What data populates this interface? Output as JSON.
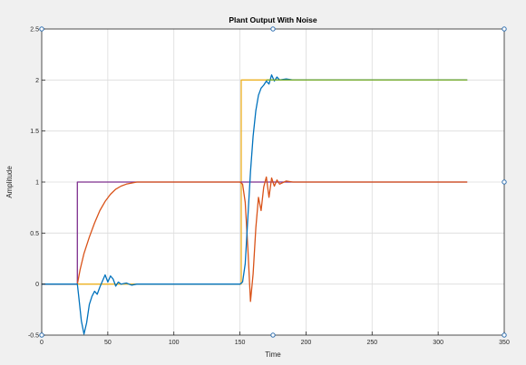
{
  "colors": {
    "figure_background": "#f0f0f0",
    "plot_background": "#ffffff",
    "grid": "#dcdcdc",
    "axis": "#262626",
    "handle": "#2f6fb0"
  },
  "chart_data": {
    "type": "line",
    "title": "Plant Output With Noise",
    "xlabel": "Time",
    "ylabel": "Amplitude",
    "xlim": [
      0,
      350
    ],
    "ylim": [
      -0.5,
      2.5
    ],
    "x_ticks": [
      0,
      50,
      100,
      150,
      200,
      250,
      300,
      350
    ],
    "x_tick_labels": [
      "0",
      "50",
      "100",
      "150",
      "200",
      "250",
      "300",
      "350"
    ],
    "y_ticks": [
      -0.5,
      0,
      0.5,
      1,
      1.5,
      2,
      2.5
    ],
    "y_tick_labels": [
      "-0.5",
      "0",
      "0.5",
      "1",
      "1.5",
      "2",
      "2.5"
    ],
    "grid": true,
    "legend": "none",
    "series": [
      {
        "color": "#edb120",
        "x": [
          0,
          151,
          151,
          322
        ],
        "y": [
          0,
          0,
          2,
          2
        ]
      },
      {
        "color": "#7e2f8e",
        "x": [
          0,
          27,
          27,
          322
        ],
        "y": [
          0,
          0,
          1,
          1
        ]
      },
      {
        "color": "#d95319",
        "x": [
          0,
          27,
          29,
          32,
          36,
          40,
          44,
          48,
          52,
          56,
          60,
          64,
          68,
          72,
          80,
          90,
          100,
          120,
          140,
          150,
          152,
          154,
          156,
          158,
          160,
          162,
          164,
          166,
          168,
          170,
          172,
          174,
          176,
          178,
          180,
          185,
          190,
          200,
          250,
          322
        ],
        "y": [
          0,
          0,
          0.14,
          0.3,
          0.46,
          0.6,
          0.72,
          0.81,
          0.88,
          0.93,
          0.96,
          0.98,
          0.99,
          1.0,
          1.0,
          1.0,
          1.0,
          1.0,
          1.0,
          1.0,
          0.98,
          0.8,
          0.35,
          -0.17,
          0.1,
          0.55,
          0.85,
          0.72,
          0.95,
          1.05,
          0.85,
          1.04,
          0.96,
          1.02,
          0.98,
          1.01,
          1.0,
          1.0,
          1.0,
          1.0
        ]
      },
      {
        "color": "#0072bd",
        "x": [
          0,
          27,
          28,
          30,
          32,
          34,
          36,
          38,
          40,
          42,
          44,
          46,
          48,
          50,
          52,
          54,
          56,
          58,
          60,
          64,
          68,
          72,
          80,
          90,
          100,
          120,
          140,
          150,
          152,
          154,
          156,
          158,
          160,
          162,
          164,
          166,
          168,
          170,
          172,
          174,
          176,
          178,
          180,
          185,
          190,
          200,
          250,
          322
        ],
        "y": [
          0,
          0,
          -0.12,
          -0.36,
          -0.49,
          -0.38,
          -0.2,
          -0.12,
          -0.07,
          -0.1,
          -0.03,
          0.03,
          0.09,
          0.02,
          0.08,
          0.05,
          -0.02,
          0.02,
          0.0,
          0.01,
          -0.01,
          0.0,
          0.0,
          0.0,
          0.0,
          0.0,
          0.0,
          0.0,
          0.02,
          0.2,
          0.65,
          1.1,
          1.45,
          1.7,
          1.85,
          1.92,
          1.95,
          1.99,
          1.96,
          2.05,
          1.99,
          2.03,
          2.0,
          2.01,
          2.0,
          2.0,
          2.0,
          2.0
        ]
      },
      {
        "color": "#77ac30",
        "x": [
          170,
          322
        ],
        "y": [
          2.0,
          2.0
        ]
      }
    ]
  }
}
